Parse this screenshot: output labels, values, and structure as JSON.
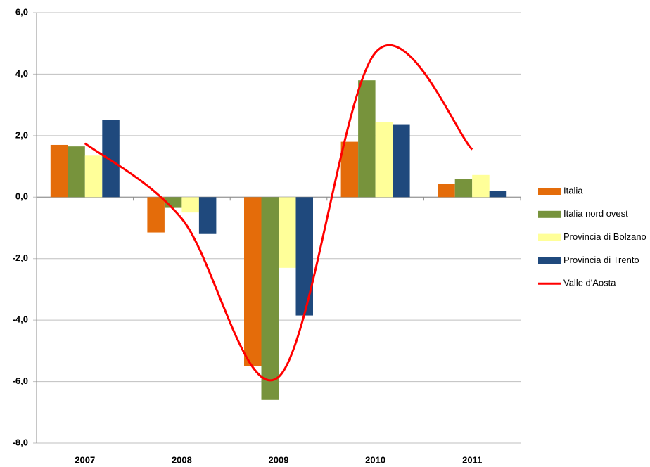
{
  "chart_data": {
    "type": "bar",
    "categories": [
      "2007",
      "2008",
      "2009",
      "2010",
      "2011"
    ],
    "series": [
      {
        "name": "Italia",
        "color": "#e46c0a",
        "values": [
          1.7,
          -1.15,
          -5.5,
          1.8,
          0.42
        ]
      },
      {
        "name": "Italia nord ovest",
        "color": "#77933c",
        "values": [
          1.65,
          -0.35,
          -6.6,
          3.8,
          0.6
        ]
      },
      {
        "name": "Provincia di Bolzano",
        "color": "#ffff99",
        "values": [
          1.35,
          -0.5,
          -2.3,
          2.45,
          0.72
        ]
      },
      {
        "name": "Provincia di Trento",
        "color": "#1f497d",
        "values": [
          2.5,
          -1.2,
          -3.85,
          2.35,
          0.2
        ]
      },
      {
        "name": "Valle d'Aosta",
        "color": "#ff0000",
        "type": "line",
        "values": [
          1.75,
          -0.7,
          -5.85,
          4.7,
          1.55
        ]
      }
    ],
    "ylim": [
      -8,
      6
    ],
    "yticks": [
      {
        "value": -8,
        "label": "-8,0"
      },
      {
        "value": -6,
        "label": "-6,0"
      },
      {
        "value": -4,
        "label": "-4,0"
      },
      {
        "value": -2,
        "label": "-2,0"
      },
      {
        "value": 0,
        "label": "0,0"
      },
      {
        "value": 2,
        "label": "2,0"
      },
      {
        "value": 4,
        "label": "4,0"
      },
      {
        "value": 6,
        "label": "6,0"
      }
    ],
    "grid": true,
    "legend": "right"
  }
}
